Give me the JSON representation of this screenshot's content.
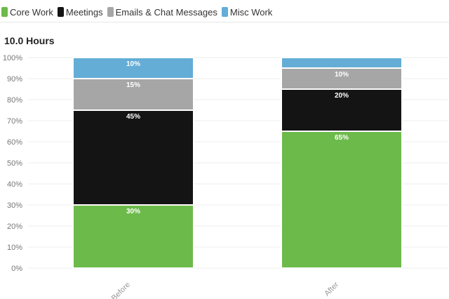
{
  "legend": {
    "items": [
      {
        "label": "Core Work",
        "color": "#6cba4a",
        "icon": "legend-swatch-core-work"
      },
      {
        "label": "Meetings",
        "color": "#141414",
        "icon": "legend-swatch-meetings"
      },
      {
        "label": "Emails & Chat Messages",
        "color": "#a6a6a6",
        "icon": "legend-swatch-emails"
      },
      {
        "label": "Misc Work",
        "color": "#63add6",
        "icon": "legend-swatch-misc"
      }
    ]
  },
  "chart_data": {
    "type": "bar",
    "stacked": true,
    "title": "10.0 Hours",
    "xlabel": "",
    "ylabel": "",
    "categories": [
      "Before",
      "After"
    ],
    "ylim": [
      0,
      100
    ],
    "yticks": [
      "0%",
      "10%",
      "20%",
      "30%",
      "40%",
      "50%",
      "60%",
      "70%",
      "80%",
      "90%",
      "100%"
    ],
    "grid": true,
    "legend_position": "top-left",
    "series": [
      {
        "name": "Core Work",
        "color": "#6cba4a",
        "values": [
          30,
          65
        ],
        "labels": [
          "30%",
          "65%"
        ]
      },
      {
        "name": "Meetings",
        "color": "#141414",
        "values": [
          45,
          20
        ],
        "labels": [
          "45%",
          "20%"
        ]
      },
      {
        "name": "Emails & Chat Messages",
        "color": "#a6a6a6",
        "values": [
          15,
          10
        ],
        "labels": [
          "15%",
          "10%"
        ]
      },
      {
        "name": "Misc Work",
        "color": "#63add6",
        "values": [
          10,
          5
        ],
        "labels": [
          "10%",
          ""
        ]
      }
    ]
  }
}
